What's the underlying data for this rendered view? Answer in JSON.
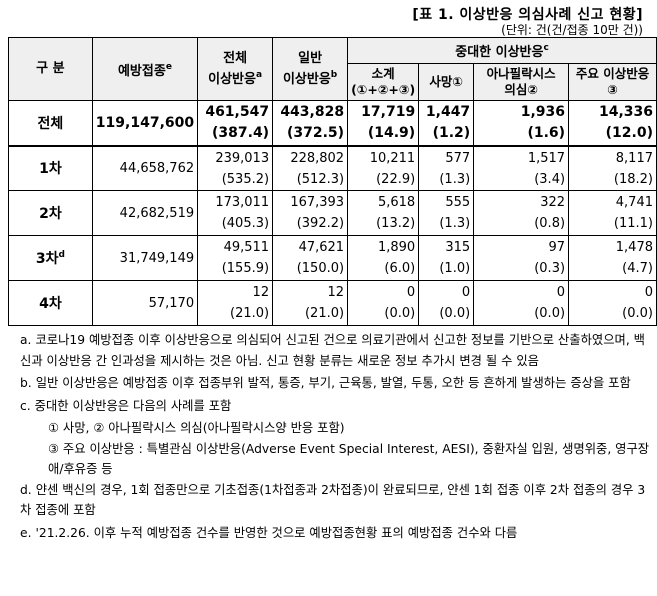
{
  "header": {
    "title": "[표 1. 이상반응 의심사례 신고 현황]",
    "unit": "(단위: 건(건/접종 10만 건))"
  },
  "table": {
    "columns": [
      {
        "lines": [
          "구 분"
        ]
      },
      {
        "lines": [
          "예방접종"
        ],
        "note": "e"
      },
      {
        "lines": [
          "전체",
          "이상반응"
        ],
        "note": "a"
      },
      {
        "lines": [
          "일반",
          "이상반응"
        ],
        "note": "b"
      }
    ],
    "group": {
      "lines": [
        "중대한 이상반응"
      ],
      "note": "c"
    },
    "subcolumns": [
      {
        "lines": [
          "소계",
          "(①+②+③)"
        ]
      },
      {
        "lines": [
          "사망①"
        ]
      },
      {
        "lines": [
          "아나필락시스",
          "의심②"
        ]
      },
      {
        "lines": [
          "주요 이상반응③"
        ]
      }
    ],
    "rows": [
      {
        "label": "전체",
        "vaccinations": "119,147,600",
        "cells": [
          [
            "461,547",
            "(387.4)"
          ],
          [
            "443,828",
            "(372.5)"
          ],
          [
            "17,719",
            "(14.9)"
          ],
          [
            "1,447",
            "(1.2)"
          ],
          [
            "1,936",
            "(1.6)"
          ],
          [
            "14,336",
            "(12.0)"
          ]
        ]
      },
      {
        "label": "1차",
        "vaccinations": "44,658,762",
        "cells": [
          [
            "239,013",
            "(535.2)"
          ],
          [
            "228,802",
            "(512.3)"
          ],
          [
            "10,211",
            "(22.9)"
          ],
          [
            "577",
            "(1.3)"
          ],
          [
            "1,517",
            "(3.4)"
          ],
          [
            "8,117",
            "(18.2)"
          ]
        ]
      },
      {
        "label": "2차",
        "vaccinations": "42,682,519",
        "cells": [
          [
            "173,011",
            "(405.3)"
          ],
          [
            "167,393",
            "(392.2)"
          ],
          [
            "5,618",
            "(13.2)"
          ],
          [
            "555",
            "(1.3)"
          ],
          [
            "322",
            "(0.8)"
          ],
          [
            "4,741",
            "(11.1)"
          ]
        ]
      },
      {
        "label": "3차",
        "note": "d",
        "vaccinations": "31,749,149",
        "cells": [
          [
            "49,511",
            "(155.9)"
          ],
          [
            "47,621",
            "(150.0)"
          ],
          [
            "1,890",
            "(6.0)"
          ],
          [
            "315",
            "(1.0)"
          ],
          [
            "97",
            "(0.3)"
          ],
          [
            "1,478",
            "(4.7)"
          ]
        ]
      },
      {
        "label": "4차",
        "vaccinations": "57,170",
        "cells": [
          [
            "12",
            "(21.0)"
          ],
          [
            "12",
            "(21.0)"
          ],
          [
            "0",
            "(0.0)"
          ],
          [
            "0",
            "(0.0)"
          ],
          [
            "0",
            "(0.0)"
          ],
          [
            "0",
            "(0.0)"
          ]
        ]
      }
    ]
  },
  "notes": [
    {
      "label": "a.",
      "text": "코로나19 예방접종 이후 이상반응으로 의심되어 신고된 건으로 의료기관에서 신고한 정보를 기반으로 산출하였으며, 백신과 이상반응 간 인과성을 제시하는 것은 아님. 신고 현황 분류는 새로운 정보 추가시 변경 될 수 있음"
    },
    {
      "label": "b.",
      "text": "일반 이상반응은 예방접종 이후 접종부위 발적, 통증, 부기, 근육통, 발열, 두통, 오한 등 흔하게 발생하는 증상을 포함"
    },
    {
      "label": "c.",
      "text": "중대한 이상반응은 다음의 사례를 포함",
      "items": [
        "① 사망, ② 아나필락시스 의심(아나필락시스양 반응 포함)",
        "③ 주요 이상반응 : 특별관심 이상반응(Adverse Event Special Interest, AESI), 중환자실 입원, 생명위중, 영구장애/후유증 등"
      ]
    },
    {
      "label": "d.",
      "text": "얀센 백신의 경우, 1회 접종만으로 기초접종(1차접종과 2차접종)이 완료되므로, 얀센 1회 접종 이후 2차 접종의 경우 3차 접종에 포함"
    },
    {
      "label": "e.",
      "text": "'21.2.26. 이후 누적 예방접종 건수를 반영한 것으로 예방접종현황 표의 예방접종 건수와 다름"
    }
  ]
}
